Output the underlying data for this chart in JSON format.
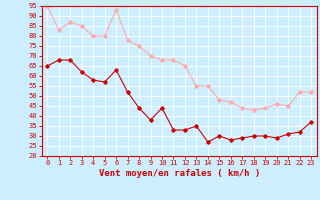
{
  "x": [
    0,
    1,
    2,
    3,
    4,
    5,
    6,
    7,
    8,
    9,
    10,
    11,
    12,
    13,
    14,
    15,
    16,
    17,
    18,
    19,
    20,
    21,
    22,
    23
  ],
  "wind_avg": [
    65,
    68,
    68,
    62,
    58,
    57,
    63,
    52,
    44,
    38,
    44,
    33,
    33,
    35,
    27,
    30,
    28,
    29,
    30,
    30,
    29,
    31,
    32,
    37
  ],
  "wind_gust": [
    95,
    83,
    87,
    85,
    80,
    80,
    93,
    78,
    75,
    70,
    68,
    68,
    65,
    55,
    55,
    48,
    47,
    44,
    43,
    44,
    46,
    45,
    52,
    52
  ],
  "avg_color": "#cc0000",
  "gust_color": "#ffaaaa",
  "bg_color": "#cceeff",
  "grid_color": "#ffffff",
  "axis_color": "#cc0000",
  "xlabel": "Vent moyen/en rafales ( km/h )",
  "ylim": [
    20,
    95
  ],
  "yticks": [
    20,
    25,
    30,
    35,
    40,
    45,
    50,
    55,
    60,
    65,
    70,
    75,
    80,
    85,
    90,
    95
  ],
  "xticks": [
    0,
    1,
    2,
    3,
    4,
    5,
    6,
    7,
    8,
    9,
    10,
    11,
    12,
    13,
    14,
    15,
    16,
    17,
    18,
    19,
    20,
    21,
    22,
    23
  ],
  "marker": "D",
  "markersize": 1.8,
  "linewidth": 0.8,
  "label_fontsize": 6.5,
  "tick_fontsize": 5.0
}
